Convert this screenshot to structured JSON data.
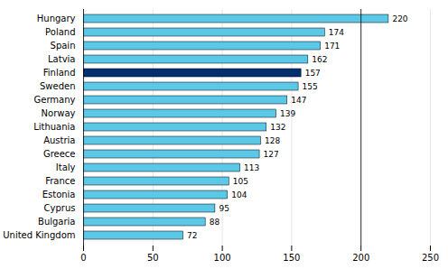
{
  "chart_data": {
    "type": "bar",
    "orientation": "horizontal",
    "categories": [
      "United Kingdom",
      "Bulgaria",
      "Cyprus",
      "Estonia",
      "France",
      "Italy",
      "Greece",
      "Austria",
      "Lithuania",
      "Norway",
      "Germany",
      "Sweden",
      "Finland",
      "Latvia",
      "Spain",
      "Poland",
      "Hungary"
    ],
    "values": [
      72,
      88,
      95,
      104,
      105,
      113,
      127,
      128,
      132,
      139,
      147,
      155,
      157,
      162,
      171,
      174,
      220
    ],
    "colors": [
      "#5bc8e8",
      "#5bc8e8",
      "#5bc8e8",
      "#5bc8e8",
      "#5bc8e8",
      "#5bc8e8",
      "#5bc8e8",
      "#5bc8e8",
      "#5bc8e8",
      "#5bc8e8",
      "#5bc8e8",
      "#5bc8e8",
      "#003070",
      "#5bc8e8",
      "#5bc8e8",
      "#5bc8e8",
      "#5bc8e8"
    ],
    "xlim": [
      0,
      250
    ],
    "xticks": [
      0,
      50,
      100,
      150,
      200,
      250
    ],
    "vline_x": 200,
    "grid": true,
    "data_labels": true
  }
}
